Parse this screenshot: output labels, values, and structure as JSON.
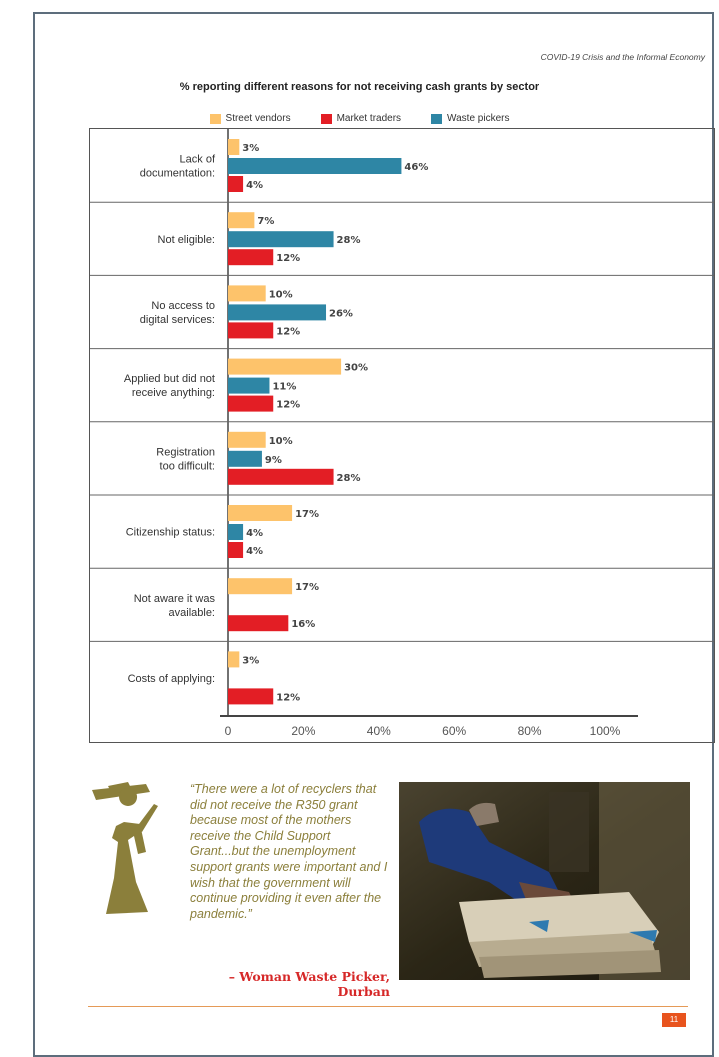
{
  "header": {
    "running_title": "COVID-19 Crisis and the Informal Economy"
  },
  "chart_data": {
    "type": "bar",
    "orientation": "horizontal",
    "title": "% reporting different reasons for not receiving cash grants by sector",
    "categories": [
      [
        "Lack of",
        "documentation:"
      ],
      [
        "Not eligible:"
      ],
      [
        "No access to",
        "digital services:"
      ],
      [
        "Applied but did not",
        "receive anything:"
      ],
      [
        "Registration",
        "too difficult:"
      ],
      [
        "Citizenship status:"
      ],
      [
        "Not aware it was",
        "available:"
      ],
      [
        "Costs of applying:"
      ]
    ],
    "series": [
      {
        "name": "Street vendors",
        "color": "#fdc36b",
        "values": [
          3,
          7,
          10,
          30,
          10,
          17,
          17,
          3
        ]
      },
      {
        "name": "Waste pickers",
        "color": "#2e86a5",
        "values": [
          46,
          28,
          26,
          11,
          9,
          4,
          null,
          null
        ]
      },
      {
        "name": "Market traders",
        "color": "#e31e25",
        "values": [
          4,
          12,
          12,
          12,
          28,
          4,
          16,
          12
        ]
      }
    ],
    "legend_order": [
      "Street vendors",
      "Market traders",
      "Waste pickers"
    ],
    "xlim": [
      0,
      110
    ],
    "xticks": [
      "0",
      "20%",
      "40%",
      "60%",
      "80%",
      "100%"
    ],
    "xtick_values": [
      0,
      20,
      40,
      60,
      80,
      100
    ],
    "legend_position": "top-center",
    "grid": false
  },
  "quote": {
    "text": "“There were a lot of recyclers that did not receive the R350 grant because most of the mothers receive the Child Support Grant...but the unemployment support grants were important and I wish that the government will continue providing it even after the pandemic.”",
    "attribution_line1": "– Woman Waste Picker,",
    "attribution_line2": "Durban"
  },
  "footer": {
    "page_number": "11"
  },
  "colors": {
    "accent": "#e8541e",
    "quote": "#8b7f3b",
    "attribution": "#d62828",
    "frame": "#5d6d7c"
  }
}
